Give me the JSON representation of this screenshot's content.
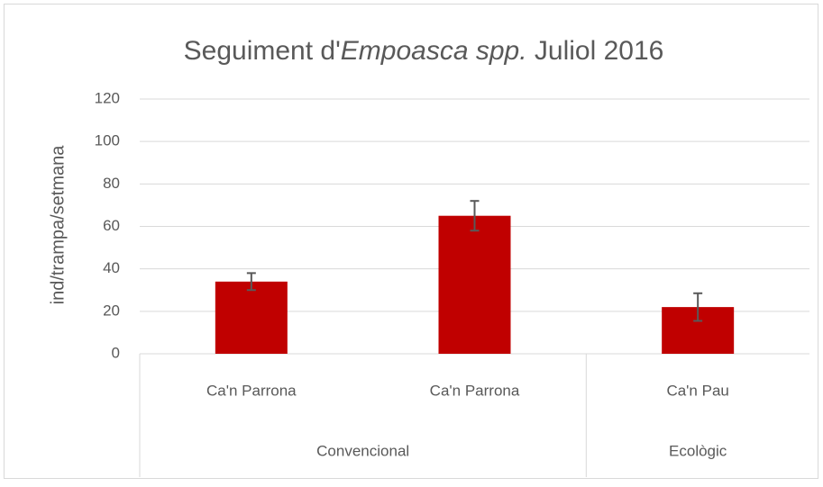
{
  "chart_data": {
    "type": "bar",
    "title": [
      {
        "text": "Seguiment d'",
        "italic": false
      },
      {
        "text": "Empoasca spp.",
        "italic": true
      },
      {
        "text": " Juliol 2016",
        "italic": false
      }
    ],
    "ylabel": "ind/trampa/setmana",
    "categories": [
      "Ca'n Parrona",
      "Ca'n Parrona",
      "Ca'n Pau"
    ],
    "groups": [
      {
        "label": "Convencional",
        "size": 2
      },
      {
        "label": "Ecològic",
        "size": 1
      }
    ],
    "values": [
      34,
      65,
      22
    ],
    "errors": [
      4,
      7,
      6.5
    ],
    "color": "#c00000",
    "error_color": "#595959",
    "ylim": [
      0,
      120
    ],
    "yticks": [
      0,
      20,
      40,
      60,
      80,
      100,
      120
    ],
    "grid": true
  }
}
